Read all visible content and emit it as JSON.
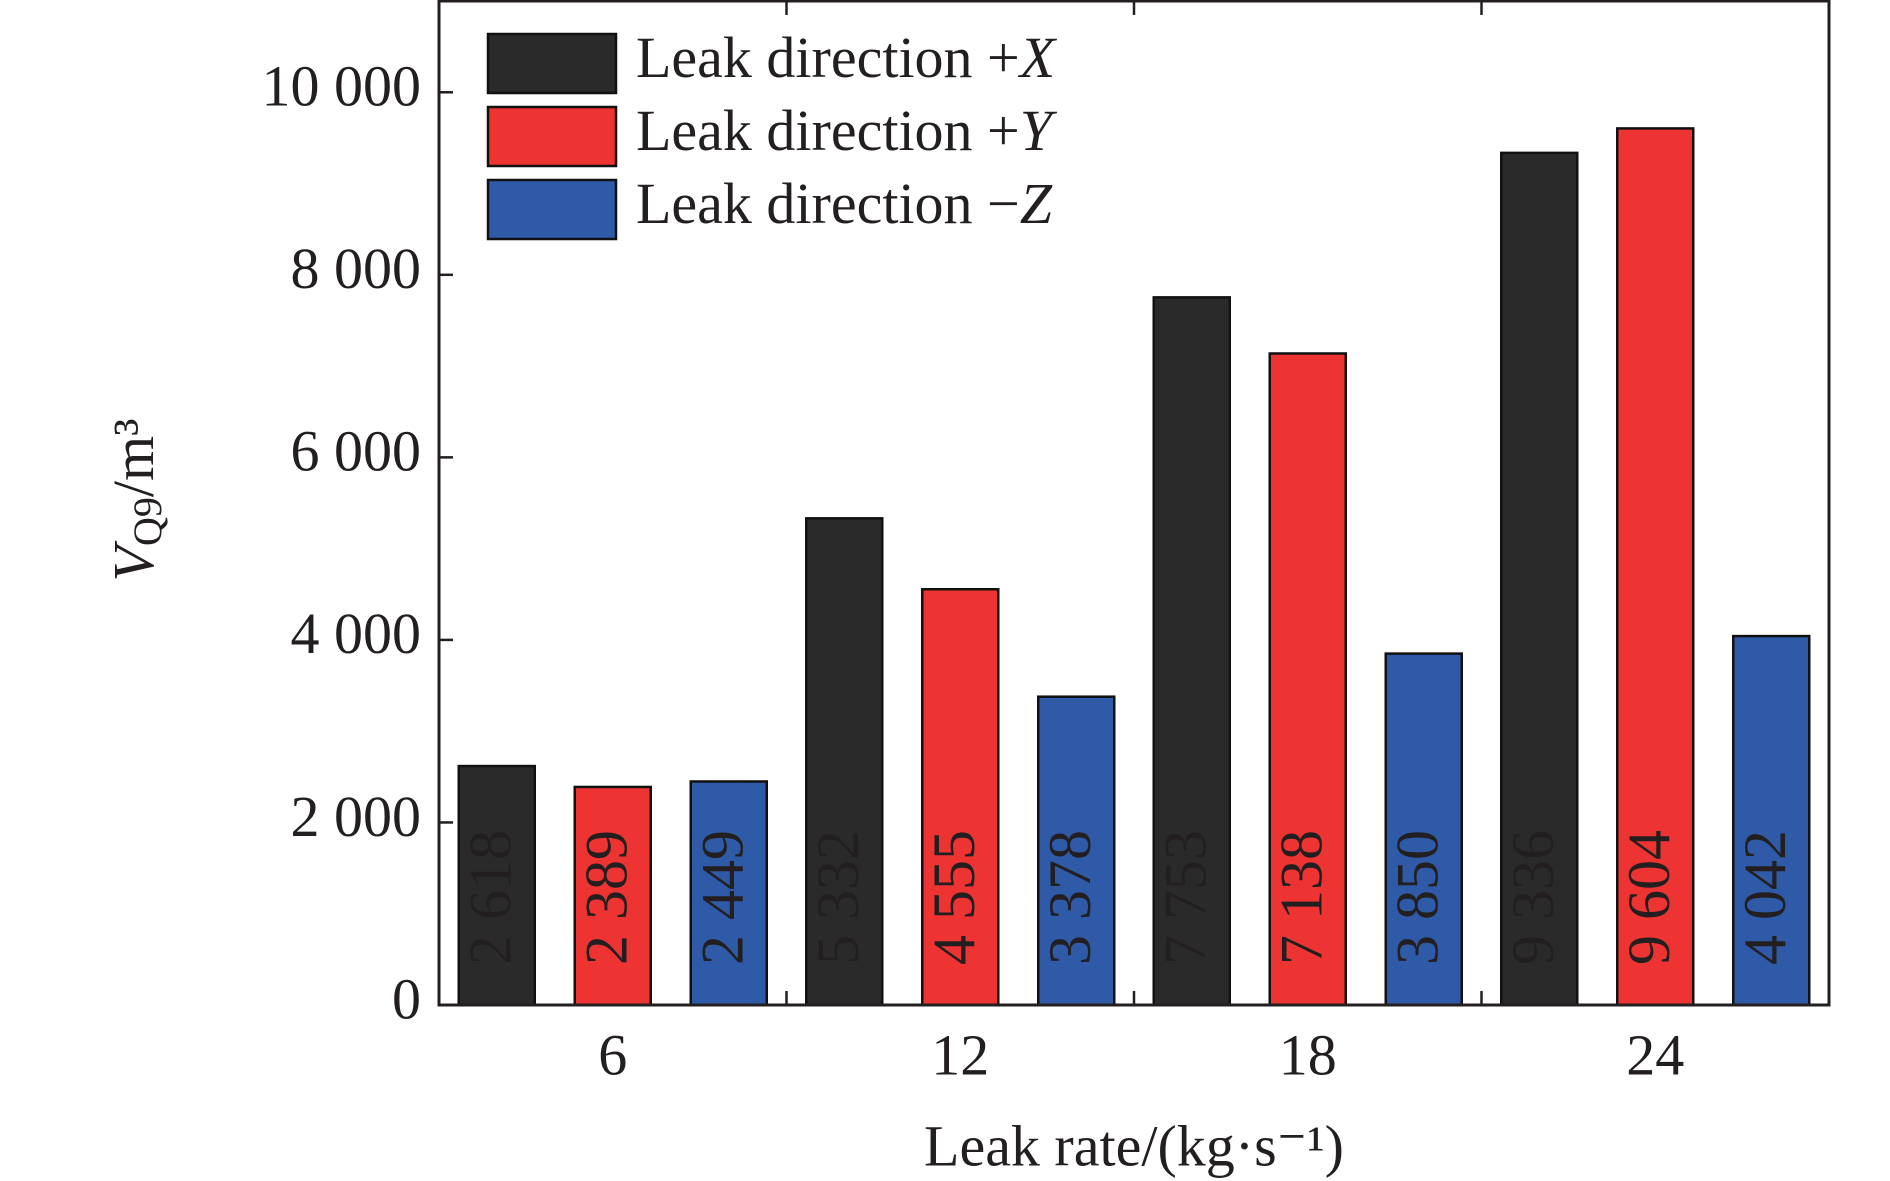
{
  "chart_data": {
    "type": "bar",
    "y_label": {
      "symbol": "V",
      "subscript": "Q9",
      "unit": "/m³"
    },
    "x_label": "Leak rate/(kg·s⁻¹)",
    "categories": [
      "6",
      "12",
      "18",
      "24"
    ],
    "series": [
      {
        "name": "Leak direction +X",
        "color": "#2b2a2b",
        "values": [
          2618,
          5332,
          7753,
          9336
        ],
        "value_labels": [
          "2 618",
          "5 332",
          "7 753",
          "9 336"
        ]
      },
      {
        "name": "Leak direction +Y",
        "color": "#ee3333",
        "values": [
          2389,
          4555,
          7138,
          9604
        ],
        "value_labels": [
          "2 389",
          "4 555",
          "7 138",
          "9 604"
        ]
      },
      {
        "name": "Leak direction −Z",
        "color": "#2f5aa8",
        "values": [
          2449,
          3378,
          3850,
          4042
        ],
        "value_labels": [
          "2 449",
          "3 378",
          "3 850",
          "4 042"
        ]
      }
    ],
    "ylim": [
      0,
      11000
    ],
    "yticks": [
      0,
      {
        "value": 2000,
        "label": "2 000"
      },
      {
        "value": 4000,
        "label": "4 000"
      },
      {
        "value": 6000,
        "label": "6 000"
      },
      {
        "value": 8000,
        "label": "8 000"
      },
      {
        "value": 10000,
        "label": "10 000"
      }
    ],
    "legend": "upper left"
  }
}
